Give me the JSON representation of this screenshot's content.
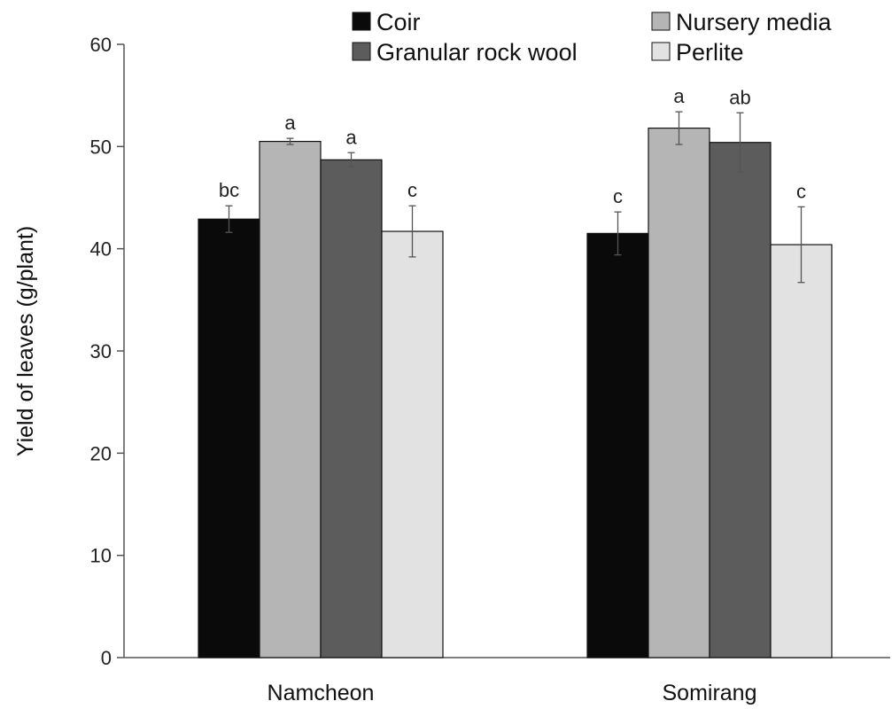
{
  "chart_data": {
    "type": "bar",
    "title": "",
    "xlabel": "",
    "ylabel": "Yield of leaves (g/plant)",
    "ylim": [
      0,
      60
    ],
    "yticks": [
      0,
      10,
      20,
      30,
      40,
      50,
      60
    ],
    "categories": [
      "Namcheon",
      "Somirang"
    ],
    "legend_position": "top-right",
    "grid": false,
    "series": [
      {
        "name": "Coir",
        "color": "#0a0a0a",
        "values": [
          42.9,
          41.5
        ],
        "errors": [
          1.3,
          2.1
        ],
        "letters": [
          "bc",
          "c"
        ]
      },
      {
        "name": "Nursery media",
        "color": "#b5b5b5",
        "values": [
          50.5,
          51.8
        ],
        "errors": [
          0.3,
          1.6
        ],
        "letters": [
          "a",
          "a"
        ]
      },
      {
        "name": "Granular rock wool",
        "color": "#5c5c5c",
        "values": [
          48.7,
          50.4
        ],
        "errors": [
          0.7,
          2.9
        ],
        "letters": [
          "a",
          "ab"
        ]
      },
      {
        "name": "Perlite",
        "color": "#e2e2e2",
        "values": [
          41.7,
          40.4
        ],
        "errors": [
          2.5,
          3.7
        ],
        "letters": [
          "c",
          "c"
        ]
      }
    ]
  }
}
